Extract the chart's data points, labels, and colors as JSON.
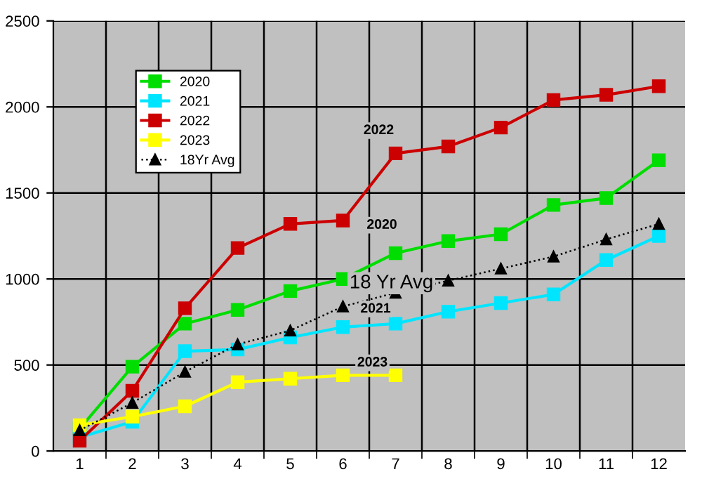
{
  "chart_data": {
    "type": "line",
    "categories": [
      "1",
      "2",
      "3",
      "4",
      "5",
      "6",
      "7",
      "8",
      "9",
      "10",
      "11",
      "12"
    ],
    "series": [
      {
        "name": "2020",
        "color": "#00dd00",
        "marker": "square",
        "line_style": "solid",
        "values": [
          130,
          490,
          740,
          820,
          930,
          1000,
          1150,
          1220,
          1260,
          1430,
          1470,
          1690
        ]
      },
      {
        "name": "2021",
        "color": "#00e5ff",
        "marker": "square",
        "line_style": "solid",
        "values": [
          80,
          170,
          580,
          590,
          660,
          720,
          740,
          810,
          860,
          910,
          1110,
          1250
        ]
      },
      {
        "name": "2022",
        "color": "#cc0000",
        "marker": "square",
        "line_style": "solid",
        "values": [
          60,
          350,
          830,
          1180,
          1320,
          1340,
          1730,
          1770,
          1880,
          2040,
          2070,
          2120
        ]
      },
      {
        "name": "2023",
        "color": "#ffff00",
        "marker": "square",
        "line_style": "solid",
        "values": [
          150,
          200,
          260,
          400,
          420,
          440,
          440,
          null,
          null,
          null,
          null,
          null
        ]
      },
      {
        "name": "18Yr Avg",
        "color": "#000000",
        "marker": "triangle",
        "line_style": "dotted",
        "values": [
          120,
          280,
          460,
          620,
          700,
          840,
          920,
          990,
          1060,
          1130,
          1230,
          1320
        ]
      }
    ],
    "ylim": [
      0,
      2500
    ],
    "yticks": [
      0,
      500,
      1000,
      1500,
      2000,
      2500
    ],
    "grid": true,
    "legend": "top left",
    "annotations": [
      "2022",
      "2020",
      "18 Yr Avg",
      "2021",
      "2023"
    ]
  }
}
